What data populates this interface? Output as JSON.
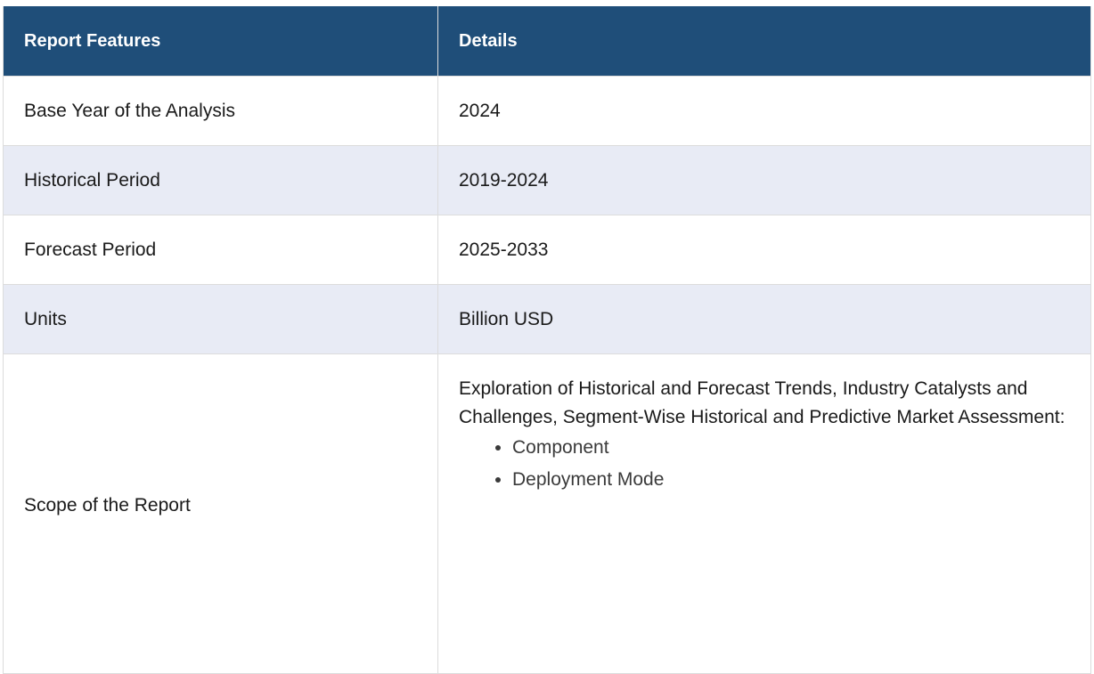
{
  "header": {
    "col1": "Report Features",
    "col2": "Details"
  },
  "rows": [
    {
      "feature": "Base Year of the Analysis",
      "detail": "2024"
    },
    {
      "feature": "Historical Period",
      "detail": "2019-2024"
    },
    {
      "feature": "Forecast Period",
      "detail": "2025-2033"
    },
    {
      "feature": "Units",
      "detail": "Billion USD"
    }
  ],
  "scope": {
    "feature": "Scope of the Report",
    "intro": "Exploration of Historical and Forecast Trends, Industry Catalysts and Challenges, Segment-Wise Historical and Predictive Market Assessment:",
    "items": [
      "Component",
      "Deployment Mode"
    ]
  },
  "colors": {
    "header_bg": "#1f4e79",
    "alt_row_bg": "#e8ebf5"
  }
}
